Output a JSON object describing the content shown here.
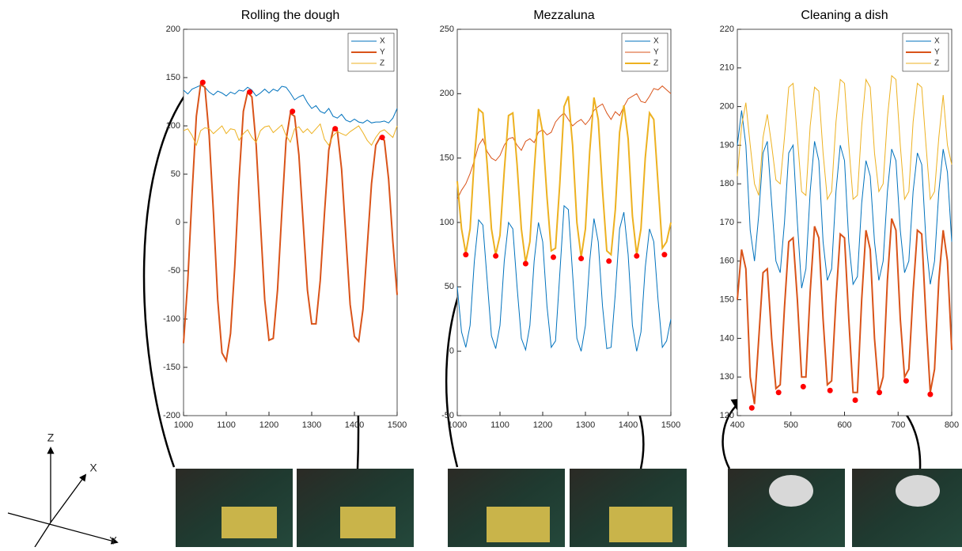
{
  "chart_data": [
    {
      "type": "line",
      "title": "Rolling the dough",
      "x": [
        1000,
        1010,
        1020,
        1030,
        1040,
        1050,
        1060,
        1070,
        1080,
        1090,
        1100,
        1110,
        1120,
        1130,
        1140,
        1150,
        1160,
        1170,
        1180,
        1190,
        1200,
        1210,
        1220,
        1230,
        1240,
        1250,
        1260,
        1270,
        1280,
        1290,
        1300,
        1310,
        1320,
        1330,
        1340,
        1350,
        1360,
        1370,
        1380,
        1390,
        1400,
        1410,
        1420,
        1430,
        1440,
        1450,
        1460,
        1470,
        1480,
        1490,
        1500
      ],
      "series": [
        {
          "name": "X",
          "color": "#0072bd",
          "linewidth": 1,
          "values": [
            137,
            133,
            138,
            140,
            142,
            140,
            135,
            132,
            136,
            134,
            131,
            135,
            133,
            137,
            136,
            140,
            137,
            131,
            134,
            138,
            134,
            138,
            136,
            141,
            140,
            134,
            127,
            130,
            132,
            124,
            118,
            121,
            115,
            113,
            118,
            110,
            108,
            112,
            106,
            104,
            107,
            104,
            103,
            106,
            103,
            104,
            104,
            105,
            103,
            108,
            118
          ]
        },
        {
          "name": "Y",
          "color": "#d95319",
          "linewidth": 2,
          "values": [
            -125,
            -60,
            30,
            110,
            143,
            140,
            90,
            10,
            -80,
            -135,
            -143,
            -115,
            -45,
            45,
            115,
            135,
            130,
            80,
            0,
            -80,
            -122,
            -120,
            -70,
            10,
            85,
            113,
            110,
            70,
            0,
            -70,
            -105,
            -105,
            -60,
            10,
            75,
            96,
            95,
            55,
            -15,
            -85,
            -118,
            -123,
            -90,
            -25,
            40,
            80,
            88,
            85,
            45,
            -20,
            -75
          ]
        },
        {
          "name": "Z",
          "color": "#edb120",
          "linewidth": 1,
          "values": [
            95,
            97,
            90,
            80,
            95,
            98,
            97,
            92,
            96,
            100,
            92,
            97,
            96,
            85,
            92,
            96,
            88,
            83,
            95,
            99,
            100,
            93,
            97,
            101,
            90,
            83,
            97,
            99,
            93,
            97,
            92,
            97,
            102,
            86,
            80,
            90,
            94,
            92,
            90,
            94,
            97,
            100,
            93,
            85,
            80,
            88,
            94,
            96,
            92,
            88,
            100
          ]
        }
      ],
      "markers": {
        "color": "#ff0000",
        "x": [
          1045,
          1155,
          1255,
          1355,
          1465
        ],
        "values": [
          145,
          135,
          115,
          97,
          88
        ]
      },
      "xlim": [
        1000,
        1500
      ],
      "ylim": [
        -200,
        200
      ],
      "xticks": [
        1000,
        1100,
        1200,
        1300,
        1400,
        1500
      ],
      "yticks": [
        -200,
        -150,
        -100,
        -50,
        0,
        50,
        100,
        150,
        200
      ],
      "legend": "upper right"
    },
    {
      "type": "line",
      "title": "Mezzaluna",
      "x": [
        1000,
        1010,
        1020,
        1030,
        1040,
        1050,
        1060,
        1070,
        1080,
        1090,
        1100,
        1110,
        1120,
        1130,
        1140,
        1150,
        1160,
        1170,
        1180,
        1190,
        1200,
        1210,
        1220,
        1230,
        1240,
        1250,
        1260,
        1270,
        1280,
        1290,
        1300,
        1310,
        1320,
        1330,
        1340,
        1350,
        1360,
        1370,
        1380,
        1390,
        1400,
        1410,
        1420,
        1430,
        1440,
        1450,
        1460,
        1470,
        1480,
        1490,
        1500
      ],
      "series": [
        {
          "name": "X",
          "color": "#0072bd",
          "linewidth": 1,
          "values": [
            50,
            15,
            3,
            20,
            70,
            102,
            98,
            55,
            12,
            2,
            20,
            70,
            100,
            95,
            50,
            10,
            1,
            20,
            70,
            100,
            85,
            35,
            3,
            8,
            60,
            113,
            110,
            60,
            10,
            0,
            20,
            70,
            103,
            85,
            35,
            2,
            3,
            45,
            95,
            108,
            75,
            20,
            0,
            15,
            65,
            95,
            85,
            40,
            3,
            8,
            25
          ]
        },
        {
          "name": "Y",
          "color": "#d95319",
          "linewidth": 1,
          "values": [
            118,
            125,
            130,
            138,
            148,
            160,
            165,
            155,
            150,
            148,
            152,
            160,
            165,
            166,
            160,
            156,
            163,
            165,
            162,
            170,
            172,
            168,
            170,
            178,
            182,
            185,
            180,
            175,
            178,
            180,
            176,
            180,
            187,
            190,
            192,
            185,
            180,
            186,
            183,
            190,
            196,
            198,
            200,
            194,
            193,
            198,
            204,
            203,
            206,
            203,
            200
          ]
        },
        {
          "name": "Z",
          "color": "#edb120",
          "linewidth": 2,
          "values": [
            132,
            95,
            76,
            95,
            150,
            188,
            185,
            145,
            95,
            75,
            90,
            140,
            183,
            185,
            145,
            95,
            69,
            85,
            140,
            188,
            170,
            120,
            78,
            80,
            130,
            190,
            198,
            160,
            100,
            73,
            95,
            155,
            197,
            180,
            125,
            78,
            75,
            110,
            170,
            191,
            165,
            105,
            75,
            95,
            150,
            185,
            180,
            130,
            80,
            85,
            100
          ]
        }
      ],
      "markers": {
        "color": "#ff0000",
        "x": [
          1020,
          1090,
          1160,
          1225,
          1290,
          1355,
          1420,
          1485
        ],
        "values": [
          75,
          74,
          68,
          73,
          72,
          70,
          74,
          75
        ]
      },
      "xlim": [
        1000,
        1500
      ],
      "ylim": [
        -50,
        250
      ],
      "xticks": [
        1000,
        1100,
        1200,
        1300,
        1400,
        1500
      ],
      "yticks": [
        -50,
        0,
        50,
        100,
        150,
        200,
        250
      ],
      "legend": "upper right"
    },
    {
      "type": "line",
      "title": "Cleaning a dish",
      "x": [
        400,
        408,
        416,
        424,
        432,
        440,
        448,
        456,
        464,
        472,
        480,
        488,
        496,
        504,
        512,
        520,
        528,
        536,
        544,
        552,
        560,
        568,
        576,
        584,
        592,
        600,
        608,
        616,
        624,
        632,
        640,
        648,
        656,
        664,
        672,
        680,
        688,
        696,
        704,
        712,
        720,
        728,
        736,
        744,
        752,
        760,
        768,
        776,
        784,
        792,
        800
      ],
      "series": [
        {
          "name": "X",
          "color": "#0072bd",
          "linewidth": 1,
          "values": [
            190,
            199,
            190,
            168,
            160,
            172,
            188,
            191,
            175,
            160,
            157,
            170,
            188,
            190,
            170,
            153,
            158,
            178,
            191,
            186,
            165,
            155,
            158,
            178,
            190,
            186,
            165,
            154,
            156,
            175,
            186,
            182,
            165,
            155,
            160,
            178,
            189,
            186,
            168,
            157,
            160,
            178,
            188,
            185,
            165,
            154,
            160,
            178,
            189,
            183,
            165
          ]
        },
        {
          "name": "Y",
          "color": "#d95319",
          "linewidth": 2,
          "values": [
            150,
            163,
            158,
            130,
            123,
            140,
            157,
            158,
            140,
            127,
            128,
            148,
            165,
            166,
            150,
            130,
            130,
            152,
            169,
            166,
            145,
            128,
            129,
            150,
            167,
            166,
            145,
            126,
            126,
            150,
            168,
            163,
            140,
            126,
            130,
            155,
            171,
            168,
            145,
            130,
            132,
            152,
            168,
            167,
            145,
            126,
            132,
            155,
            168,
            160,
            137
          ]
        },
        {
          "name": "Z",
          "color": "#edb120",
          "linewidth": 1,
          "values": [
            182,
            195,
            201,
            190,
            180,
            177,
            192,
            198,
            190,
            181,
            180,
            192,
            205,
            206,
            192,
            178,
            177,
            195,
            205,
            204,
            188,
            176,
            178,
            196,
            207,
            206,
            190,
            176,
            177,
            195,
            207,
            205,
            188,
            178,
            180,
            197,
            208,
            207,
            190,
            176,
            178,
            196,
            206,
            205,
            190,
            176,
            178,
            192,
            203,
            190,
            185
          ]
        }
      ],
      "markers": {
        "color": "#ff0000",
        "x": [
          427,
          477,
          523,
          573,
          620,
          665,
          715,
          760
        ],
        "values": [
          122,
          126,
          127.5,
          126.5,
          124,
          126,
          129,
          125.5
        ]
      },
      "xlim": [
        400,
        800
      ],
      "ylim": [
        120,
        220
      ],
      "xticks": [
        400,
        500,
        600,
        700,
        800
      ],
      "yticks": [
        120,
        130,
        140,
        150,
        160,
        170,
        180,
        190,
        200,
        210,
        220
      ],
      "legend": "upper right"
    }
  ],
  "axes_diagram": {
    "labels": [
      "Z",
      "X",
      "Y"
    ]
  }
}
